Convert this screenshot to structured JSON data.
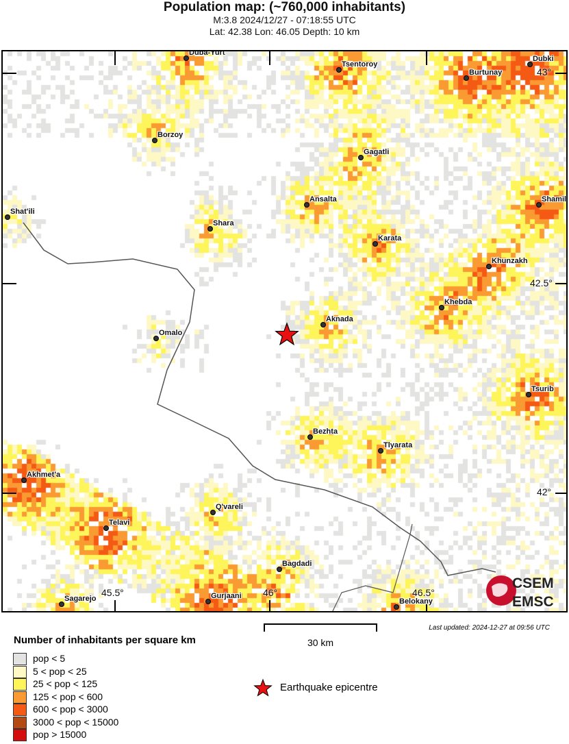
{
  "header": {
    "title": "Population map: (~760,000 inhabitants)",
    "event": "M:3.8 2024/12/27 - 07:18:55 UTC",
    "location": "Lat: 42.38 Lon: 46.05 Depth: 10 km"
  },
  "map": {
    "cities": [
      "Duba-Yurt",
      "Tsentoroy",
      "Dubki",
      "Burtunay",
      "Borzoy",
      "Gagatli",
      "Shat'ili",
      "Ansalta",
      "Shamil",
      "Shara",
      "Karata",
      "Khunzakh",
      "Khebda",
      "Aknada",
      "Omalo",
      "Tsurib",
      "Bezhta",
      "Tlyarata",
      "Akhmet'a",
      "Q'vareli",
      "Telavi",
      "Bagdadi",
      "Gurjaani",
      "Sagarejo",
      "Belokany"
    ],
    "lat_labels": [
      "43°",
      "42.5°",
      "42°"
    ],
    "lon_labels": [
      "45.5°",
      "46°",
      "46.5°"
    ],
    "epicentre": {
      "lat": 42.38,
      "lon": 46.05
    },
    "logo": {
      "top": "CSEM",
      "bottom": "EMSC"
    }
  },
  "scale_bar": {
    "label": "30 km"
  },
  "updated": "Last updated: 2024-12-27 at 09:56 UTC",
  "legend": {
    "title": "Number of inhabitants per square km",
    "classes": [
      {
        "label": "pop < 5",
        "color": "#e3e3e1"
      },
      {
        "label": "5 < pop < 25",
        "color": "#fdf8c4"
      },
      {
        "label": "25 < pop < 125",
        "color": "#fdf55a"
      },
      {
        "label": "125 < pop < 600",
        "color": "#f99a32"
      },
      {
        "label": "600 < pop < 3000",
        "color": "#f55a14"
      },
      {
        "label": "3000 < pop < 15000",
        "color": "#b34a14"
      },
      {
        "label": "pop > 15000",
        "color": "#d40d0d"
      }
    ],
    "epicentre_label": "Earthquake epicentre",
    "epicentre_color": "#e81010"
  }
}
